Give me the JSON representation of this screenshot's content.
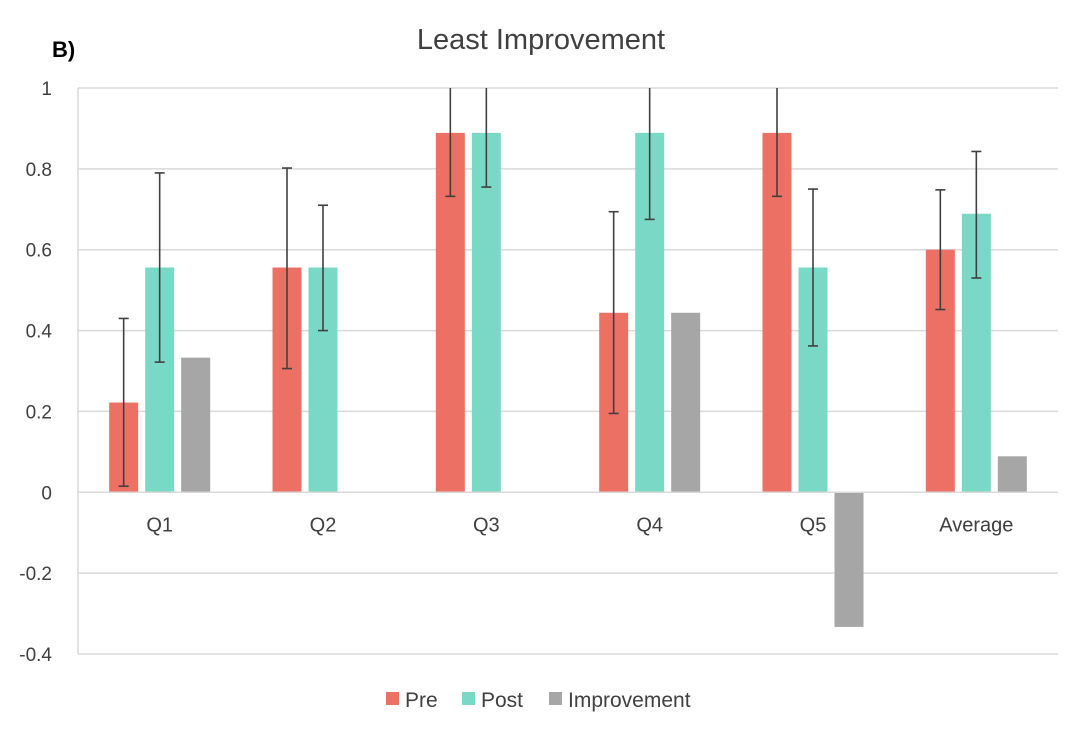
{
  "panel_label": "B)",
  "chart_data": {
    "type": "bar",
    "title": "Least Improvement",
    "xlabel": "",
    "ylabel": "",
    "categories": [
      "Q1",
      "Q2",
      "Q3",
      "Q4",
      "Q5",
      "Average"
    ],
    "ylim": [
      -0.4,
      1
    ],
    "yticks": [
      1,
      0.8,
      0.6,
      0.4,
      0.2,
      0,
      -0.2,
      -0.4
    ],
    "ytick_labels": [
      "1",
      "0.8",
      "0.6",
      "0.4",
      "0.2",
      "0",
      "-0.2",
      "-0.4"
    ],
    "grid": true,
    "legend_position": "bottom",
    "series": [
      {
        "name": "Pre",
        "color": "#ED7064",
        "values": [
          0.222,
          0.556,
          0.889,
          0.444,
          0.889,
          0.6
        ],
        "error_low": [
          0.015,
          0.306,
          0.732,
          0.195,
          0.732,
          0.452
        ],
        "error_high": [
          0.43,
          0.802,
          1.0,
          0.694,
          1.0,
          0.748
        ]
      },
      {
        "name": "Post",
        "color": "#7AD9C6",
        "values": [
          0.556,
          0.556,
          0.889,
          0.889,
          0.556,
          0.689
        ],
        "error_low": [
          0.322,
          0.4,
          0.755,
          0.675,
          0.362,
          0.53
        ],
        "error_high": [
          0.79,
          0.71,
          1.0,
          1.0,
          0.75,
          0.843
        ]
      },
      {
        "name": "Improvement",
        "color": "#A6A6A6",
        "values": [
          0.333,
          0,
          0,
          0.444,
          -0.333,
          0.089
        ]
      }
    ]
  }
}
